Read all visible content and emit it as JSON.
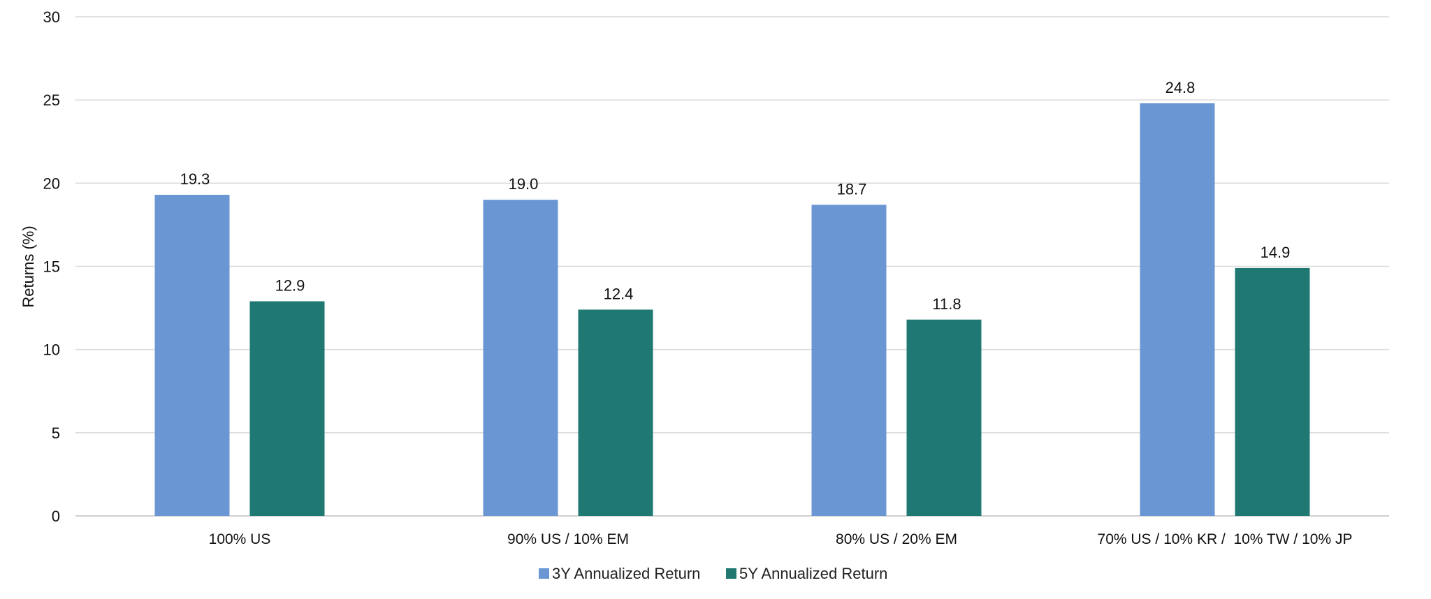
{
  "chart_data": {
    "type": "bar",
    "title": "",
    "xlabel": "",
    "ylabel": "Returns (%)",
    "ylim": [
      0,
      30
    ],
    "yticks": [
      0,
      5,
      10,
      15,
      20,
      25,
      30
    ],
    "grid": true,
    "legend_position": "bottom",
    "categories": [
      "100% US",
      "90% US / 10% EM",
      "80% US / 20% EM",
      "70% US / 10% KR /  10% TW / 10% JP"
    ],
    "series": [
      {
        "name": "3Y Annualized Return",
        "color": "#6a96d4",
        "values": [
          19.3,
          19.0,
          18.7,
          24.8
        ],
        "labels": [
          "19.3",
          "19.0",
          "18.7",
          "24.8"
        ]
      },
      {
        "name": "5Y Annualized Return",
        "color": "#1f7872",
        "values": [
          12.9,
          12.4,
          11.8,
          14.9
        ],
        "labels": [
          "12.9",
          "12.4",
          "11.8",
          "14.9"
        ]
      }
    ]
  }
}
